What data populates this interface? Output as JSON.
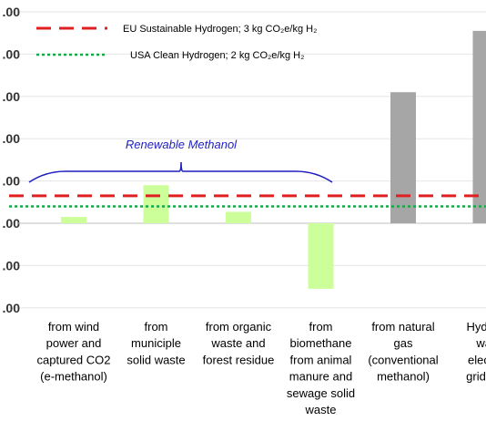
{
  "chart_data": {
    "type": "bar",
    "categories": [
      [
        "from wind",
        "power and",
        "captured CO2",
        "(e-methanol)"
      ],
      [
        "from",
        "municiple",
        "solid waste"
      ],
      [
        "from organic",
        "waste and",
        "forest residue"
      ],
      [
        "from",
        "biomethane",
        "from animal",
        "manure and",
        "sewage solid",
        "waste"
      ],
      [
        "from natural",
        "gas",
        "(conventional",
        "methanol)"
      ],
      [
        "Hydrog",
        "wat",
        "electro",
        "grid ele"
      ]
    ],
    "series": [
      {
        "values": [
          0.15,
          0.9,
          0.27,
          -1.55,
          3.1,
          4.55
        ],
        "colors": [
          "#ccff99",
          "#ccff99",
          "#ccff99",
          "#ccff99",
          "#a6a6a6",
          "#a6a6a6"
        ]
      }
    ],
    "ytick_labels": [
      ".00",
      ".00",
      ".00",
      ".00",
      ".00",
      ".00",
      ".00",
      ".00"
    ],
    "ytick_values": [
      5,
      4,
      3,
      2,
      1,
      0,
      -1,
      -2
    ],
    "ylim": [
      -2,
      5.3
    ],
    "grid": true,
    "reference_lines": [
      {
        "label": "EU Sustainable Hydrogen; 3 kg CO₂e/kg H₂",
        "value": 0.65,
        "color": "#e02020",
        "style": "dashed"
      },
      {
        "label": "USA Clean Hydrogen; 2 kg CO₂e/kg H₂",
        "value": 0.4,
        "color": "#1aa64a",
        "style": "dotted"
      }
    ],
    "annotation": {
      "label": "Renewable Methanol",
      "color": "#1f1fbf"
    }
  }
}
